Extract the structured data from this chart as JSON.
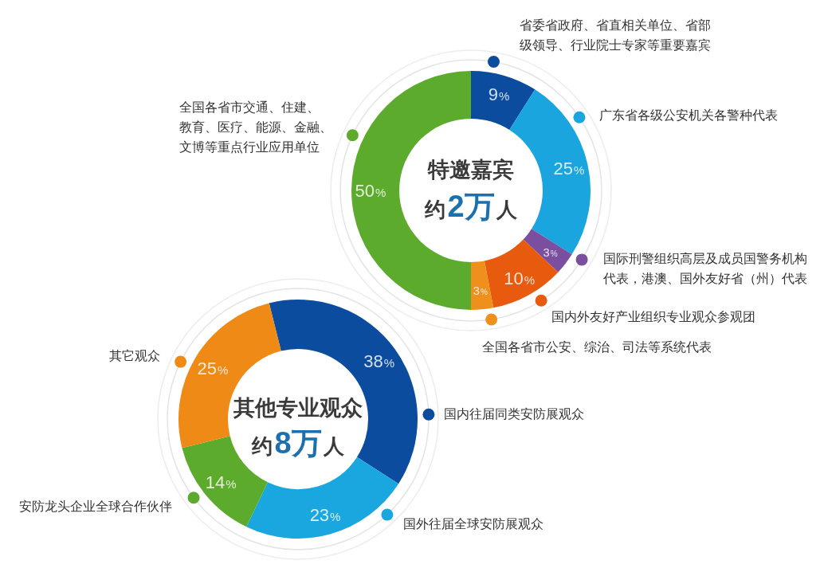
{
  "chart_data": [
    {
      "type": "donut",
      "title": "特邀嘉宾",
      "subtitle": "约2万人",
      "categories": [
        "省委省政府、省直相关单位、省部级领导、行业院士专家等重要嘉宾",
        "广东省各级公安机关各警种代表",
        "国际刑警组织高层及成员国警务机构代表，港澳、国外友好省（州）代表",
        "国内外友好产业组织专业观众参观团",
        "全国各省市公安、综治、司法等系统代表",
        "全国各省市交通、住建、教育、医疗、能源、金融、文博等重点行业应用单位"
      ],
      "values": [
        9,
        25,
        3,
        10,
        3,
        50
      ],
      "colors": [
        "#0b4c9e",
        "#1aa5de",
        "#7b4fa0",
        "#e85a0e",
        "#f0901c",
        "#5dab2c"
      ],
      "value_labels": [
        "9%",
        "25%",
        "3%",
        "10%",
        "3%",
        "50%"
      ],
      "legend": "right"
    },
    {
      "type": "donut",
      "title": "其他专业观众",
      "subtitle": "约8万人",
      "categories": [
        "国内往届同类安防展观众",
        "国外往届全球安防展观众",
        "安防龙头企业全球合作伙伴",
        "其它观众"
      ],
      "values": [
        38,
        23,
        14,
        25
      ],
      "colors": [
        "#0b4c9e",
        "#1aa7e0",
        "#5dab2c",
        "#ef8a16"
      ],
      "value_labels": [
        "38%",
        "23%",
        "14%",
        "25%"
      ],
      "legend": "left"
    }
  ]
}
